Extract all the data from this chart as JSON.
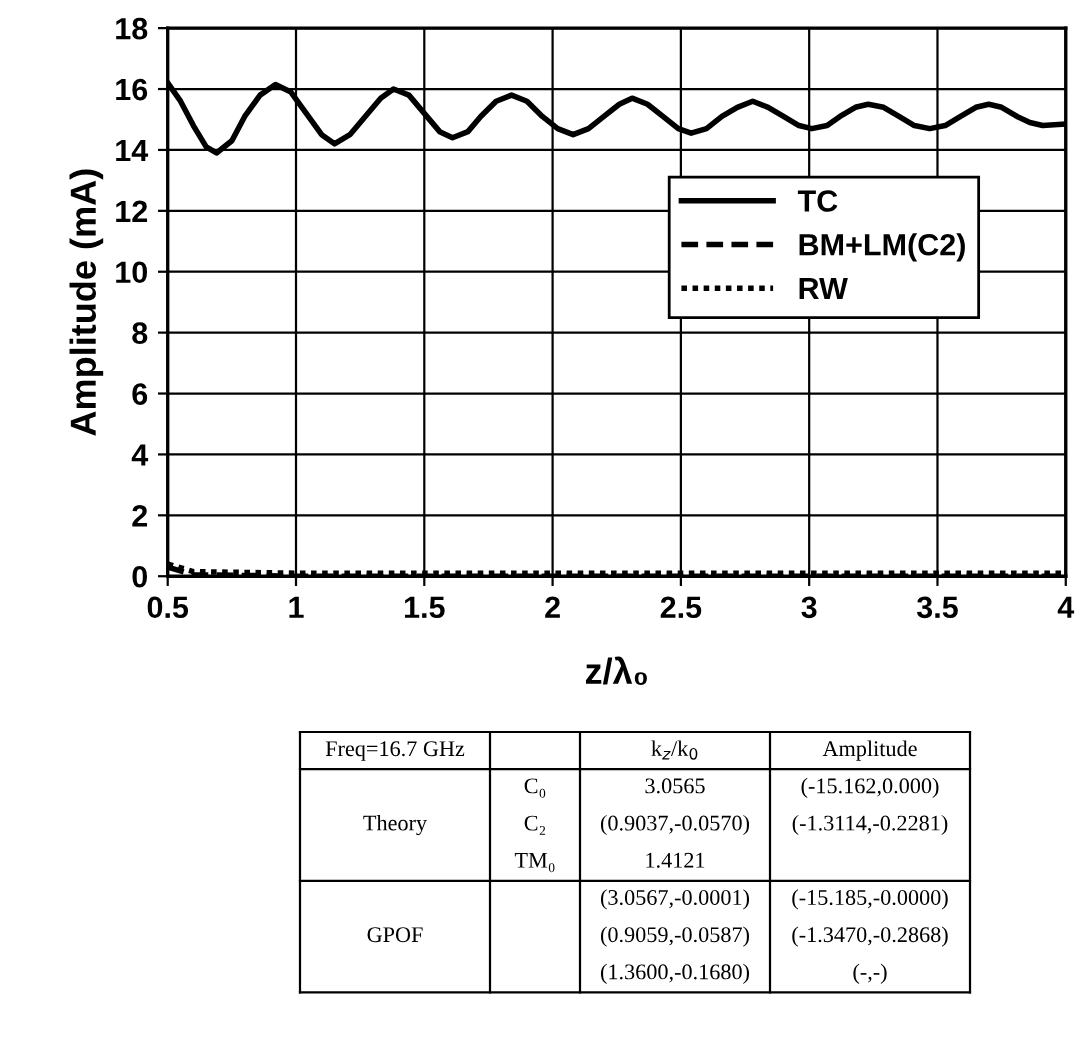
{
  "chart_data": {
    "type": "line",
    "xlabel": "z/λ₀",
    "ylabel": "Amplitude (mA)",
    "series": [
      {
        "name": "TC",
        "color": "#000000",
        "line_style": "solid",
        "x": [
          0.5,
          0.55,
          0.6,
          0.65,
          0.69,
          0.75,
          0.8,
          0.86,
          0.92,
          0.98,
          1.04,
          1.1,
          1.15,
          1.21,
          1.27,
          1.33,
          1.38,
          1.44,
          1.5,
          1.56,
          1.61,
          1.67,
          1.72,
          1.78,
          1.84,
          1.9,
          1.96,
          2.02,
          2.08,
          2.14,
          2.2,
          2.26,
          2.31,
          2.37,
          2.43,
          2.49,
          2.54,
          2.6,
          2.66,
          2.72,
          2.78,
          2.84,
          2.9,
          2.96,
          3.01,
          3.07,
          3.12,
          3.18,
          3.23,
          3.29,
          3.35,
          3.41,
          3.47,
          3.53,
          3.59,
          3.65,
          3.7,
          3.75,
          3.81,
          3.86,
          3.91,
          4.0
        ],
        "values": [
          16.2,
          15.6,
          14.8,
          14.1,
          13.9,
          14.3,
          15.1,
          15.8,
          16.15,
          15.9,
          15.2,
          14.5,
          14.2,
          14.5,
          15.1,
          15.7,
          16.0,
          15.8,
          15.2,
          14.6,
          14.4,
          14.6,
          15.1,
          15.6,
          15.8,
          15.6,
          15.1,
          14.7,
          14.5,
          14.7,
          15.1,
          15.5,
          15.7,
          15.5,
          15.1,
          14.7,
          14.55,
          14.7,
          15.1,
          15.4,
          15.6,
          15.4,
          15.1,
          14.8,
          14.7,
          14.8,
          15.1,
          15.4,
          15.5,
          15.4,
          15.1,
          14.8,
          14.7,
          14.8,
          15.1,
          15.4,
          15.5,
          15.4,
          15.1,
          14.9,
          14.8,
          14.85
        ]
      },
      {
        "name": "BM+LM(C2)",
        "color": "#000000",
        "line_style": "dashed",
        "x": [
          0.5,
          0.6,
          1.0,
          2.0,
          3.0,
          4.0
        ],
        "values": [
          0.3,
          0.05,
          0.0,
          0.0,
          0.0,
          0.0
        ]
      },
      {
        "name": "RW",
        "color": "#000000",
        "line_style": "dotted",
        "x": [
          0.5,
          0.6,
          1.0,
          2.0,
          3.0,
          4.0
        ],
        "values": [
          0.4,
          0.15,
          0.1,
          0.1,
          0.1,
          0.1
        ]
      }
    ],
    "xlim": [
      0.5,
      4
    ],
    "ylim": [
      0,
      18
    ],
    "xticks": [
      0.5,
      1,
      1.5,
      2,
      2.5,
      3,
      3.5,
      4
    ],
    "yticks": [
      0,
      2,
      4,
      6,
      8,
      10,
      12,
      14,
      16,
      18
    ],
    "grid": true,
    "legend": "right",
    "marker": "none",
    "annotations": [
      "Freq=16.7 GHz",
      "k$_{z}$/k$_{0}$",
      "Amplitude",
      "Theory",
      "C₀",
      "3.0565",
      "(-15.162,0.000)",
      "C₂",
      "(0.9037,-0.0570)",
      "(-1.3114,-0.2281)",
      "TM₀",
      "1.4121",
      "GPOF",
      "(3.0567,-0.0001)",
      "(-15.185,-0.0000)",
      "(0.9059,-0.0587)",
      "(-1.3470,-0.2868)",
      "(1.3600,-0.1680)",
      "(-,-)"
    ]
  }
}
